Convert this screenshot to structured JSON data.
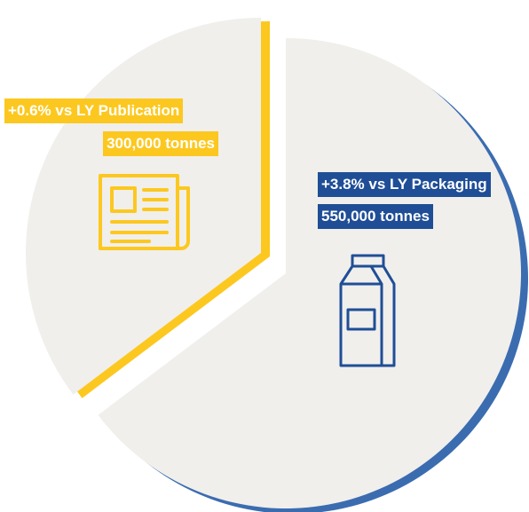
{
  "chart_data": {
    "type": "pie",
    "categories": [
      "Publication",
      "Packaging"
    ],
    "changes": [
      "+0.6% vs LY",
      "+3.8% vs LY"
    ],
    "values": [
      300000,
      550000
    ],
    "value_labels": [
      "300,000 tonnes",
      "550,000 tonnes"
    ],
    "colors": [
      "#f0efec",
      "#f0efec"
    ],
    "accent_colors": [
      "#fcc820",
      "#3b6cb0"
    ]
  }
}
